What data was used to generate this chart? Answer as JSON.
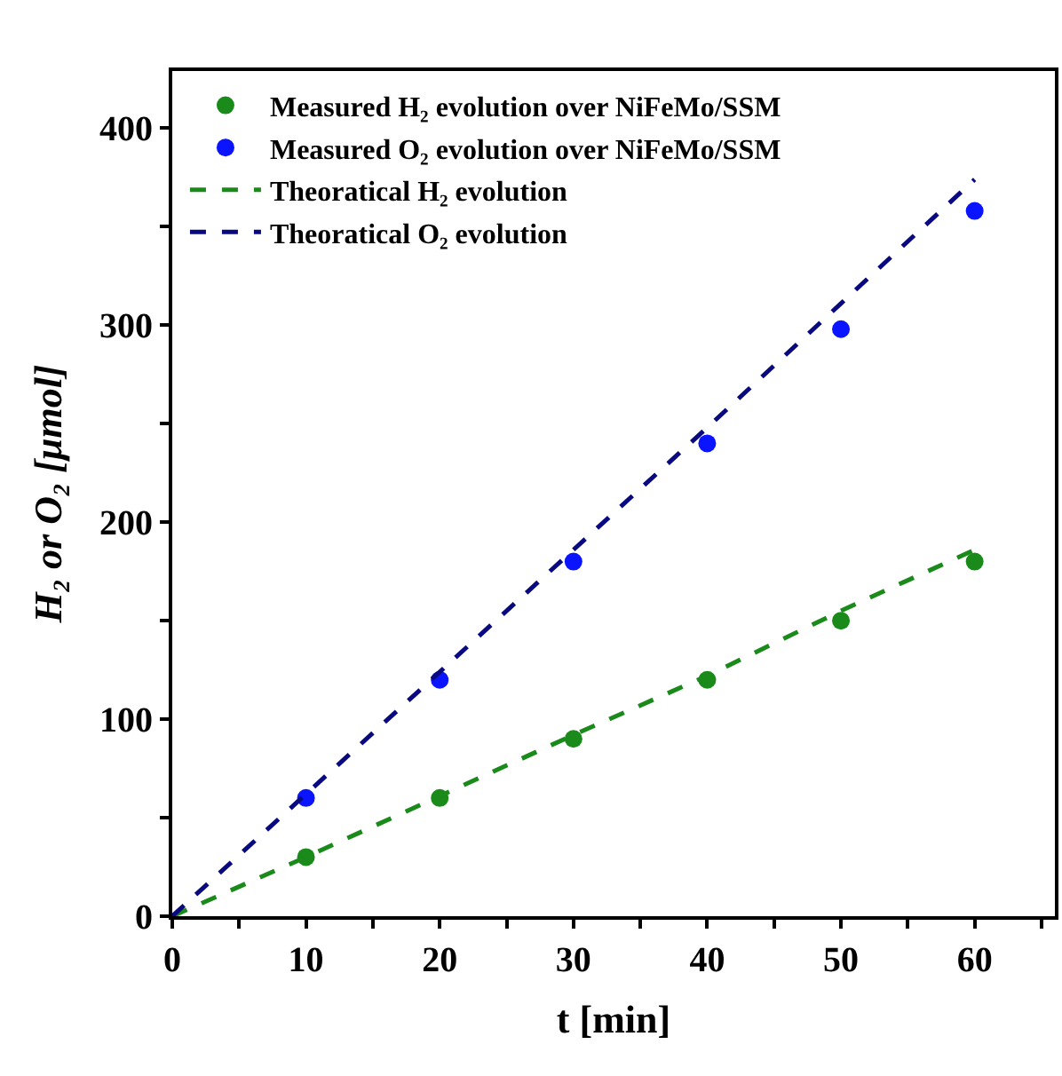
{
  "chart_data": {
    "type": "scatter",
    "xlabel": "t [min]",
    "ylabel": "H₂ or O₂ [μmol]",
    "xlim": [
      0,
      66
    ],
    "ylim": [
      0,
      429
    ],
    "xticks": [
      0,
      {
        "value": 5,
        "label": null
      },
      10,
      {
        "value": 15,
        "label": null
      },
      20,
      {
        "value": 25,
        "label": null
      },
      30,
      {
        "value": 35,
        "label": null
      },
      40,
      {
        "value": 45,
        "label": null
      },
      50,
      {
        "value": 55,
        "label": null
      },
      60,
      {
        "value": 65,
        "label": null
      }
    ],
    "yticks": [
      0,
      {
        "value": 50,
        "label": null
      },
      100,
      {
        "value": 150,
        "label": null
      },
      200,
      {
        "value": 250,
        "label": null
      },
      300,
      {
        "value": 350,
        "label": null
      },
      400
    ],
    "legend": "top left",
    "marker": "circle",
    "series": [
      {
        "name": "Measured H₂ evolution over NiFeMo/SSM",
        "color": "#1a8a1a",
        "x": [
          10,
          20,
          30,
          40,
          50,
          60
        ],
        "values": [
          30,
          60,
          90,
          120,
          150,
          180
        ]
      },
      {
        "name": "Measured O₂ evolution over NiFeMo/SSM",
        "color": "#0a14ff",
        "x": [
          10,
          20,
          30,
          40,
          50,
          60
        ],
        "values": [
          60,
          120,
          180,
          240,
          298,
          358
        ]
      },
      {
        "name": "Theoratical H₂ evolution",
        "type": "line",
        "line_style": "dashed",
        "marker": "none",
        "color": "#1a8a1a",
        "x": [
          0,
          10,
          20,
          30,
          40,
          50,
          60
        ],
        "values": [
          0,
          30,
          61,
          92,
          122,
          155,
          186
        ]
      },
      {
        "name": "Theoratical O₂ evolution",
        "type": "line",
        "line_style": "dashed",
        "marker": "none",
        "color": "#0a0a80",
        "x": [
          0,
          10,
          20,
          30,
          40,
          50,
          60
        ],
        "values": [
          0,
          62,
          124,
          186,
          248,
          311,
          374
        ]
      }
    ]
  }
}
